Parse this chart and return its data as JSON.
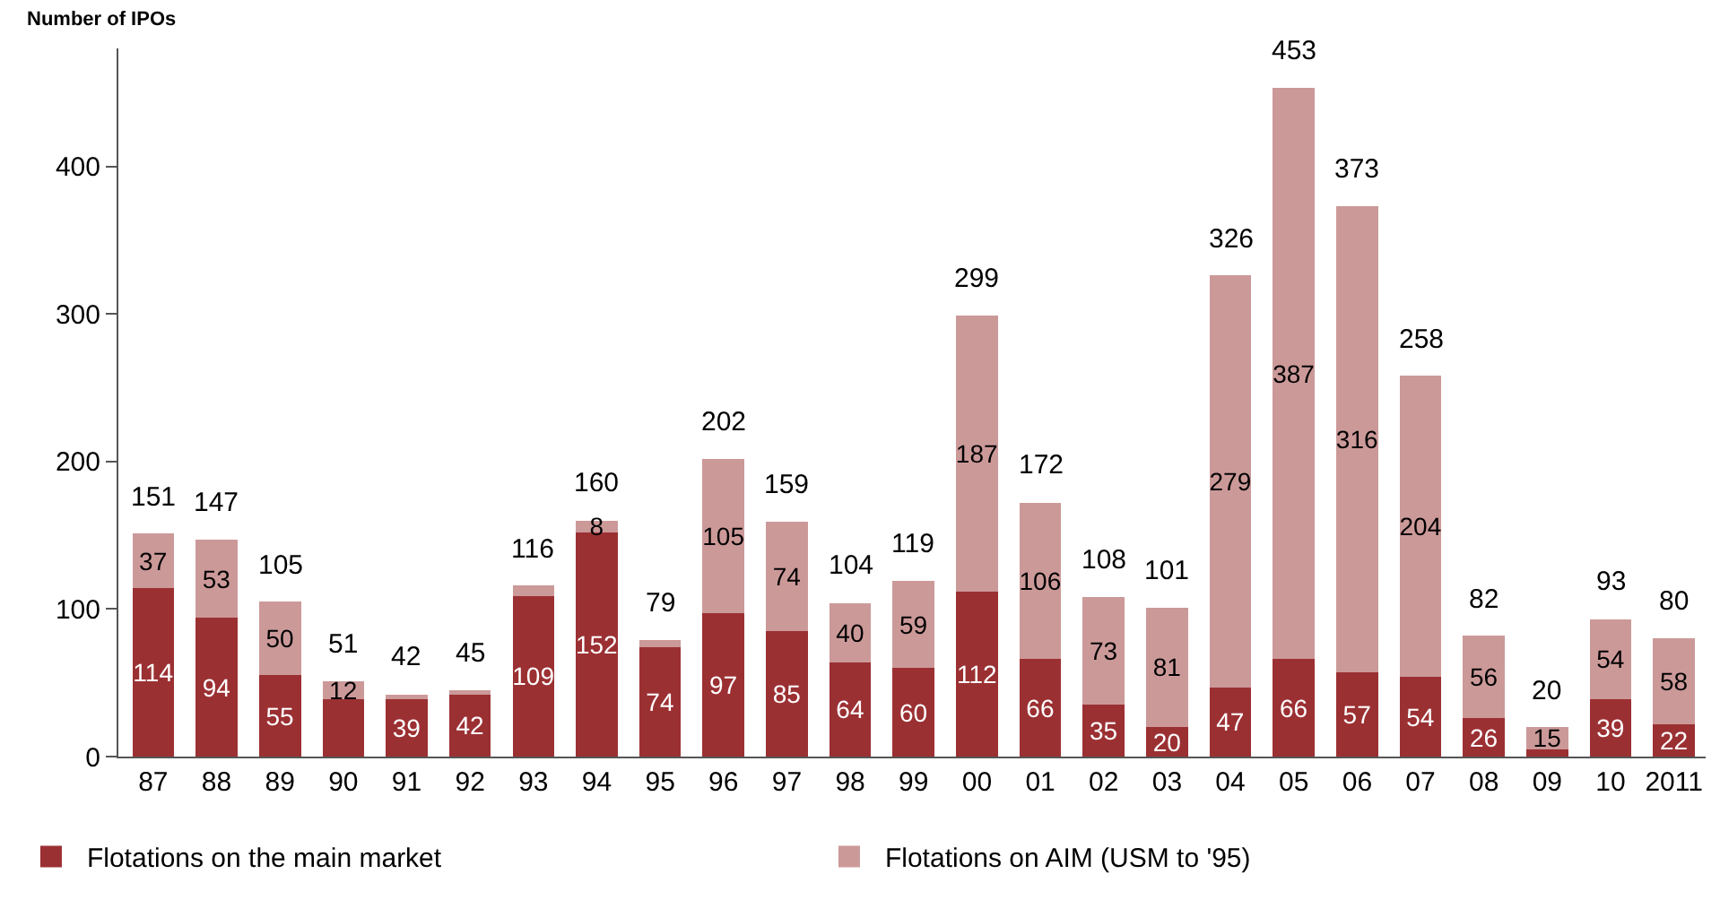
{
  "chart_data": {
    "type": "bar",
    "stacked": true,
    "ylabel": "Number of IPOs",
    "categories": [
      "87",
      "88",
      "89",
      "90",
      "91",
      "92",
      "93",
      "94",
      "95",
      "96",
      "97",
      "98",
      "99",
      "00",
      "01",
      "02",
      "03",
      "04",
      "05",
      "06",
      "07",
      "08",
      "09",
      "10",
      "2011"
    ],
    "series": [
      {
        "name": "Flotations on the main market",
        "color": "#9b3033",
        "values": [
          114,
          94,
          55,
          39,
          39,
          42,
          109,
          152,
          74,
          97,
          85,
          64,
          60,
          112,
          66,
          35,
          20,
          47,
          66,
          57,
          54,
          26,
          5,
          39,
          22
        ],
        "value_labels": [
          "114",
          "94",
          "55",
          null,
          "39",
          "42",
          "109",
          "152",
          "74",
          "97",
          "85",
          "64",
          "60",
          "112",
          "66",
          "35",
          "20",
          "47",
          "66",
          "57",
          "54",
          "26",
          null,
          "39",
          "22"
        ]
      },
      {
        "name": "Flotations on AIM (USM to '95)",
        "color": "#cc9999",
        "values": [
          37,
          53,
          50,
          12,
          3,
          3,
          7,
          8,
          5,
          105,
          74,
          40,
          59,
          187,
          106,
          73,
          81,
          279,
          387,
          316,
          204,
          56,
          15,
          54,
          58
        ],
        "value_labels": [
          "37",
          "53",
          "50",
          "12",
          null,
          null,
          null,
          "8",
          null,
          "105",
          "74",
          "40",
          "59",
          "187",
          "106",
          "73",
          "81",
          "279",
          "387",
          "316",
          "204",
          "56",
          "15",
          "54",
          "58"
        ]
      }
    ],
    "totals": [
      "151",
      "147",
      "105",
      "51",
      "42",
      "45",
      "116",
      "160",
      "79",
      "202",
      "159",
      "104",
      "119",
      "299",
      "172",
      "108",
      "101",
      "326",
      "453",
      "373",
      "258",
      "82",
      "20",
      "93",
      "80"
    ],
    "ylim": [
      0,
      480
    ],
    "yticks": [
      0,
      100,
      200,
      300,
      400
    ],
    "legend": "bottom left"
  }
}
